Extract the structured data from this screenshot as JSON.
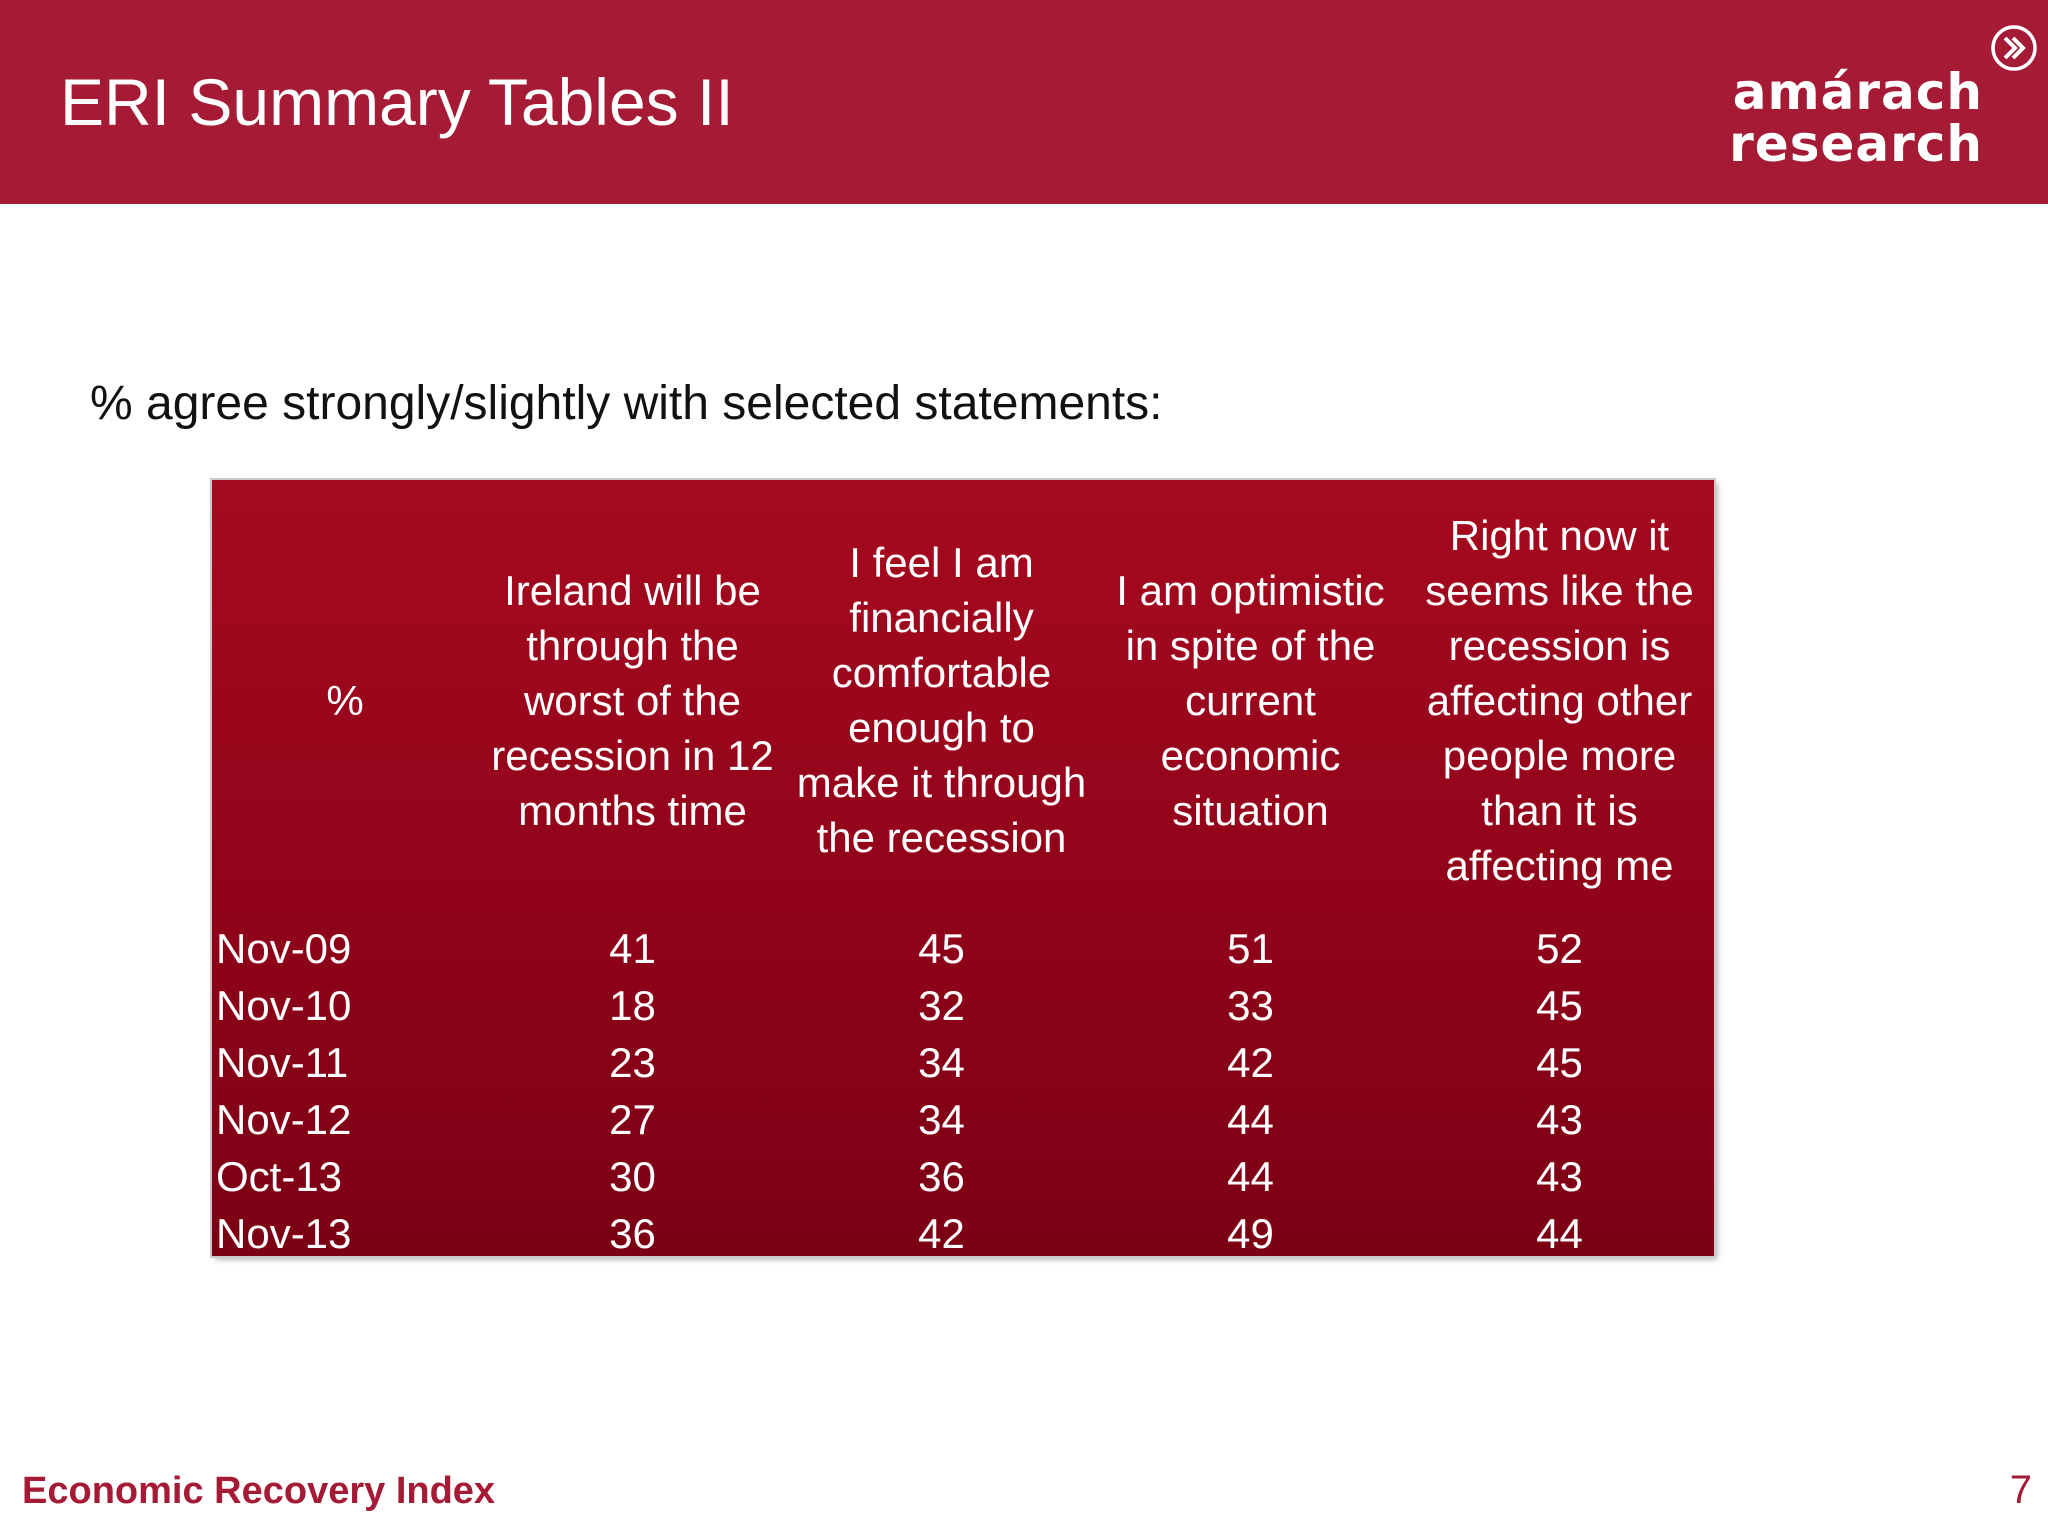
{
  "slide": {
    "title": "ERI Summary Tables II",
    "subtitle": "% agree strongly/slightly with selected statements:",
    "page_number": "7"
  },
  "logo": {
    "line1": "amárach",
    "line2": "research",
    "icon": "chevron-circle-icon"
  },
  "footer": {
    "label": "Economic Recovery Index"
  },
  "colors": {
    "header": "#a51b35",
    "table_top": "#a60a1f",
    "table_bottom": "#7b0014",
    "footer_text": "#a51b35"
  },
  "table": {
    "corner_label": "%",
    "columns": [
      "Ireland will be through the worst of the recession in 12 months time",
      "I feel I am financially comfortable enough to make it through the recession",
      "I am optimistic in spite of the current economic situation",
      "Right now it seems like the recession is affecting other people more than it is affecting me"
    ],
    "rows": [
      {
        "date": "Nov-09",
        "values": [
          "41",
          "45",
          "51",
          "52"
        ]
      },
      {
        "date": "Nov-10",
        "values": [
          "18",
          "32",
          "33",
          "45"
        ]
      },
      {
        "date": "Nov-11",
        "values": [
          "23",
          "34",
          "42",
          "45"
        ]
      },
      {
        "date": "Nov-12",
        "values": [
          "27",
          "34",
          "44",
          "43"
        ]
      },
      {
        "date": "Oct-13",
        "values": [
          "30",
          "36",
          "44",
          "43"
        ]
      },
      {
        "date": "Nov-13",
        "values": [
          "36",
          "42",
          "49",
          "44"
        ]
      }
    ]
  }
}
